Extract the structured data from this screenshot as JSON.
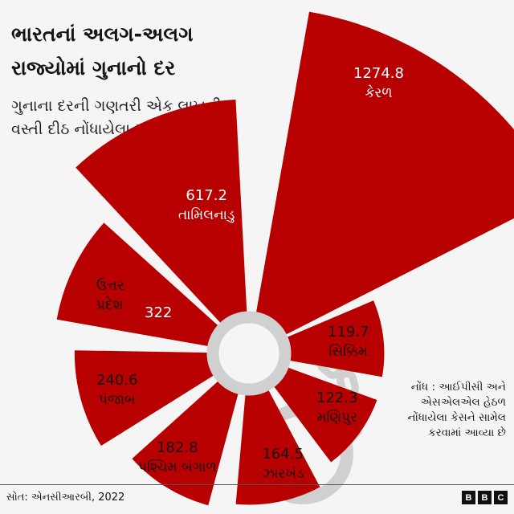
{
  "header": {
    "title": "ભારતનાં અલગ-અલગ રાજ્યોમાં ગુનાનો દર",
    "subtitle": "ગુનાના દરની ગણતરી એક લાખની વસ્તી દીઠ નોંધાયેલા ગુનાના આધારે"
  },
  "note": "નોંધ : આઈપીસી અને એસએલએલ હેઠળ નોંધાયેલા કેસને સામેલ કરવામાં આવ્યા છે",
  "footer": {
    "source": "સોત: એનસીઆરબી, 2022",
    "logo": [
      "B",
      "B",
      "C"
    ]
  },
  "colors": {
    "bar": "#b80000",
    "ring": "#d0d0d0",
    "background": "#f5f5f5"
  },
  "chart_data": {
    "type": "bar",
    "layout": "polar (radial bar / nightingale)",
    "title": "ભારતનાં અલગ-અલગ રાજ્યોમાં ગુનાનો દર",
    "subtitle": "ગુનાના દરની ગણતરી એક લાખની વસ્તી દીઠ નોંધાયેલા ગુનાના આધારે",
    "categories": [
      "કેરળ",
      "સિક્કિમ",
      "મણિપુર",
      "ઝારખંડ",
      "પશ્ચિમ બંગાળ",
      "પંજાબ",
      "ઉત્તર પ્રદેશ",
      "તામિલનાડુ"
    ],
    "values": [
      1274.8,
      119.7,
      122.3,
      164.5,
      182.8,
      240.6,
      322,
      617.2
    ],
    "unit": "crimes per 100,000 population",
    "source": "NCRB, 2022",
    "grid": false,
    "legend": "none"
  },
  "labels": {
    "kerala": {
      "value": "1274.8",
      "name": "કેરળ"
    },
    "sikkim": {
      "value": "119.7",
      "name": "સિક્કિમ"
    },
    "manipur": {
      "value": "122.3",
      "name": "મણિપુર"
    },
    "jharkhand": {
      "value": "164.5",
      "name": "ઝારખંડ"
    },
    "west_bengal": {
      "value": "182.8",
      "name": "પશ્ચિમ બંગાળ"
    },
    "punjab": {
      "value": "240.6",
      "name": "પંજાબ"
    },
    "uttar_pradesh": {
      "value": "322",
      "name": "ઉત્તર પ્રદેશ"
    },
    "tamil_nadu": {
      "value": "617.2",
      "name": "તામિલનાડુ"
    }
  }
}
